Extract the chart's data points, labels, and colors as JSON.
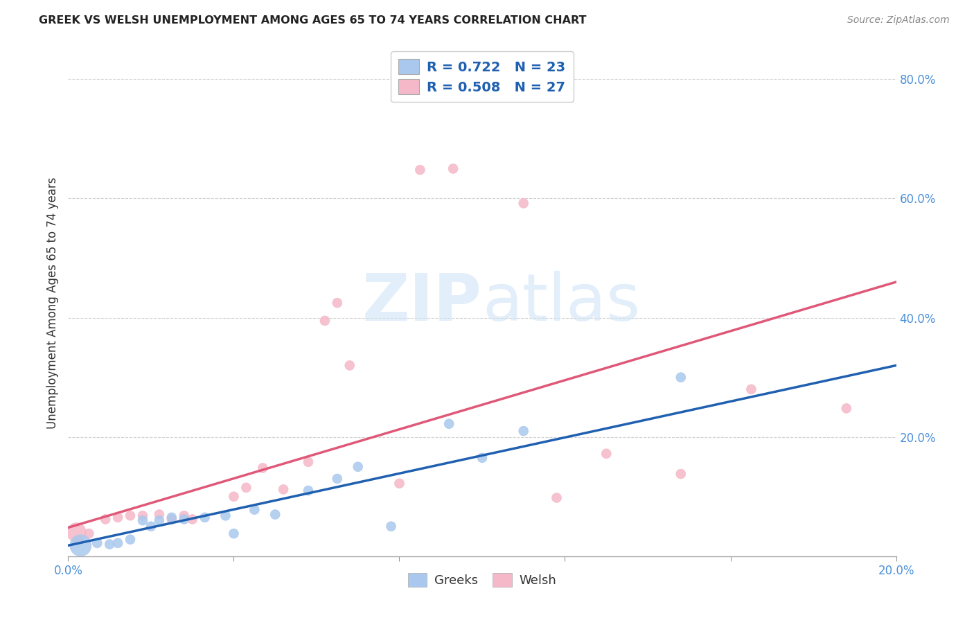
{
  "title": "GREEK VS WELSH UNEMPLOYMENT AMONG AGES 65 TO 74 YEARS CORRELATION CHART",
  "source": "Source: ZipAtlas.com",
  "ylabel_label": "Unemployment Among Ages 65 to 74 years",
  "xlim": [
    0.0,
    0.2
  ],
  "ylim": [
    0.0,
    0.85
  ],
  "yticks": [
    0.0,
    0.2,
    0.4,
    0.6,
    0.8
  ],
  "xticks": [
    0.0,
    0.04,
    0.08,
    0.12,
    0.16,
    0.2
  ],
  "background_color": "#ffffff",
  "greek_color": "#aac8ee",
  "welsh_color": "#f5b8c8",
  "greek_line_color": "#2060b0",
  "welsh_line_color": "#e05878",
  "greek_R": 0.722,
  "greek_N": 23,
  "welsh_R": 0.508,
  "welsh_N": 27,
  "greeks_x": [
    0.003,
    0.007,
    0.01,
    0.012,
    0.015,
    0.018,
    0.02,
    0.022,
    0.025,
    0.028,
    0.033,
    0.038,
    0.04,
    0.045,
    0.05,
    0.058,
    0.065,
    0.07,
    0.078,
    0.092,
    0.1,
    0.11,
    0.148
  ],
  "greeks_y": [
    0.018,
    0.022,
    0.02,
    0.022,
    0.028,
    0.06,
    0.05,
    0.06,
    0.065,
    0.062,
    0.065,
    0.068,
    0.038,
    0.078,
    0.07,
    0.11,
    0.13,
    0.15,
    0.05,
    0.222,
    0.165,
    0.21,
    0.3
  ],
  "greeks_size": [
    500,
    100,
    100,
    100,
    100,
    100,
    100,
    100,
    100,
    100,
    100,
    100,
    100,
    100,
    100,
    100,
    100,
    100,
    100,
    100,
    100,
    100,
    100
  ],
  "welsh_x": [
    0.002,
    0.005,
    0.009,
    0.012,
    0.015,
    0.018,
    0.022,
    0.025,
    0.028,
    0.03,
    0.04,
    0.043,
    0.047,
    0.052,
    0.058,
    0.062,
    0.065,
    0.068,
    0.08,
    0.085,
    0.093,
    0.11,
    0.118,
    0.13,
    0.148,
    0.165,
    0.188
  ],
  "welsh_y": [
    0.04,
    0.038,
    0.062,
    0.065,
    0.068,
    0.068,
    0.07,
    0.062,
    0.068,
    0.062,
    0.1,
    0.115,
    0.148,
    0.112,
    0.158,
    0.395,
    0.425,
    0.32,
    0.122,
    0.648,
    0.65,
    0.592,
    0.098,
    0.172,
    0.138,
    0.28,
    0.248
  ],
  "welsh_size": [
    400,
    100,
    100,
    100,
    100,
    100,
    100,
    100,
    100,
    100,
    100,
    100,
    100,
    100,
    100,
    100,
    100,
    100,
    100,
    100,
    100,
    100,
    100,
    100,
    100,
    100,
    100
  ],
  "tick_color": "#4a90d9",
  "label_color": "#333333",
  "grid_color": "#cccccc",
  "watermark_color": "#d0e4f5",
  "watermark_alpha": 0.6
}
